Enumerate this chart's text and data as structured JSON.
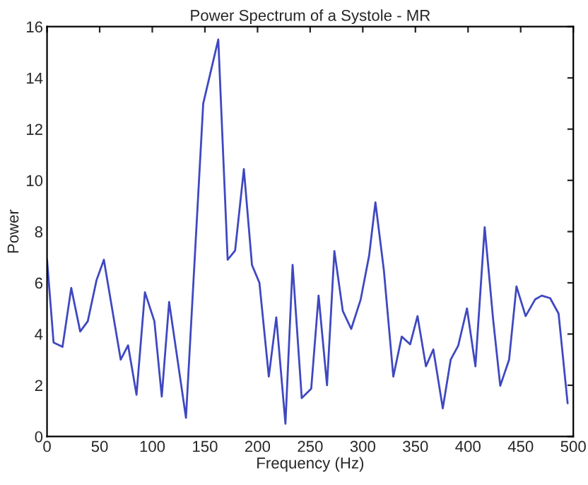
{
  "chart_data": {
    "type": "line",
    "title": "Power Spectrum of a Systole - MR",
    "xlabel": "Frequency (Hz)",
    "ylabel": "Power",
    "xlim": [
      0,
      500
    ],
    "xticks": [
      0,
      50,
      100,
      150,
      200,
      250,
      300,
      350,
      400,
      450,
      500
    ],
    "ylim": [
      0,
      16
    ],
    "yticks": [
      0,
      2,
      4,
      6,
      8,
      10,
      12,
      14,
      16
    ],
    "grid": false,
    "marker": "none",
    "line_style": "solid",
    "series": [
      {
        "color": "#3f48c0",
        "x": [
          0,
          6.2,
          14.7,
          23,
          31.5,
          38.7,
          47,
          54,
          70,
          77,
          85,
          93,
          102,
          109,
          116,
          132,
          148.4,
          162.7,
          171.6,
          178.7,
          187,
          194.7,
          201.8,
          210.7,
          217.8,
          226.5,
          233.3,
          242,
          251,
          258,
          266,
          273,
          281,
          289,
          298,
          306,
          312,
          320,
          329,
          337,
          345,
          352,
          360,
          367,
          376,
          383.5,
          390.7,
          399,
          407,
          415.8,
          423.8,
          430.6,
          439,
          446,
          454.7,
          463.7,
          470,
          478,
          486,
          494.6
        ],
        "values": [
          6.9,
          3.67,
          3.5,
          5.8,
          4.1,
          4.5,
          6.1,
          6.9,
          3.0,
          3.56,
          1.63,
          5.63,
          4.5,
          1.56,
          5.25,
          0.73,
          13.0,
          15.5,
          6.9,
          7.26,
          10.44,
          6.7,
          6.0,
          2.34,
          4.65,
          0.5,
          6.7,
          1.5,
          1.87,
          5.5,
          2.0,
          7.24,
          4.9,
          4.2,
          5.35,
          7.06,
          9.14,
          6.5,
          2.34,
          3.9,
          3.6,
          4.7,
          2.74,
          3.4,
          1.1,
          3.0,
          3.55,
          5.0,
          2.74,
          8.17,
          4.58,
          1.98,
          3.0,
          5.86,
          4.7,
          5.35,
          5.5,
          5.4,
          4.8,
          1.3
        ]
      }
    ]
  }
}
